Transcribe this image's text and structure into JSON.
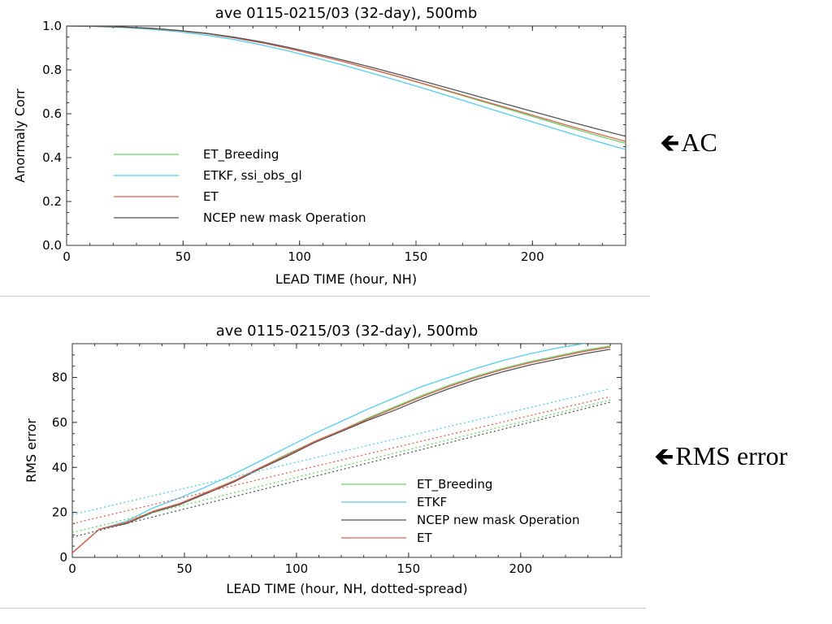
{
  "chart_data": [
    {
      "type": "line",
      "title": "ave 0115-0215/03 (32-day), 500mb",
      "xlabel": "LEAD TIME (hour, NH)",
      "ylabel": "Anormaly Corr",
      "xlim": [
        0,
        240
      ],
      "ylim": [
        0,
        1.0
      ],
      "xticks": [
        "0",
        "50",
        "100",
        "150",
        "200"
      ],
      "yticks": [
        "0.0",
        "0.2",
        "0.4",
        "0.6",
        "0.8",
        "1.0"
      ],
      "legend": "bottom-left",
      "side_label": "AC",
      "series": [
        {
          "name": "ET_Breeding",
          "color": "#66d366",
          "style": "solid",
          "x": [
            0,
            12,
            24,
            36,
            48,
            60,
            72,
            84,
            96,
            108,
            120,
            132,
            144,
            156,
            168,
            180,
            192,
            204,
            216,
            228,
            240
          ],
          "y": [
            1.0,
            0.999,
            0.995,
            0.989,
            0.979,
            0.965,
            0.946,
            0.923,
            0.896,
            0.866,
            0.834,
            0.799,
            0.764,
            0.727,
            0.689,
            0.651,
            0.613,
            0.575,
            0.537,
            0.5,
            0.465
          ]
        },
        {
          "name": "ETKF, ssi_obs_gl",
          "color": "#55ccee",
          "style": "solid",
          "x": [
            0,
            12,
            24,
            36,
            48,
            60,
            72,
            84,
            96,
            108,
            120,
            132,
            144,
            156,
            168,
            180,
            192,
            204,
            216,
            228,
            240
          ],
          "y": [
            1.0,
            0.998,
            0.993,
            0.985,
            0.974,
            0.958,
            0.938,
            0.913,
            0.884,
            0.852,
            0.818,
            0.782,
            0.745,
            0.707,
            0.668,
            0.628,
            0.589,
            0.55,
            0.511,
            0.473,
            0.437
          ]
        },
        {
          "name": "ET",
          "color": "#e06050",
          "style": "solid",
          "x": [
            0,
            12,
            24,
            36,
            48,
            60,
            72,
            84,
            96,
            108,
            120,
            132,
            144,
            156,
            168,
            180,
            192,
            204,
            216,
            228,
            240
          ],
          "y": [
            1.0,
            0.999,
            0.995,
            0.989,
            0.979,
            0.965,
            0.946,
            0.923,
            0.896,
            0.866,
            0.834,
            0.8,
            0.765,
            0.729,
            0.692,
            0.655,
            0.618,
            0.581,
            0.544,
            0.508,
            0.474
          ]
        },
        {
          "name": "NCEP new mask Operation",
          "color": "#555555",
          "style": "solid",
          "x": [
            0,
            12,
            24,
            36,
            48,
            60,
            72,
            84,
            96,
            108,
            120,
            132,
            144,
            156,
            168,
            180,
            192,
            204,
            216,
            228,
            240
          ],
          "y": [
            1.0,
            0.999,
            0.996,
            0.99,
            0.98,
            0.967,
            0.949,
            0.927,
            0.901,
            0.872,
            0.841,
            0.809,
            0.775,
            0.74,
            0.705,
            0.669,
            0.634,
            0.599,
            0.564,
            0.53,
            0.497
          ]
        }
      ]
    },
    {
      "type": "line",
      "title": "ave 0115-0215/03 (32-day), 500mb",
      "xlabel": "LEAD TIME (hour, NH, dotted-spread)",
      "ylabel": "RMS error",
      "xlim": [
        0,
        245
      ],
      "ylim": [
        0,
        95
      ],
      "xticks": [
        "0",
        "50",
        "100",
        "150",
        "200"
      ],
      "yticks": [
        "0",
        "20",
        "40",
        "60",
        "80"
      ],
      "legend": "bottom-right",
      "side_label": "RMS error",
      "series": [
        {
          "name": "ET_Breeding",
          "color": "#66d366",
          "style": "solid",
          "x": [
            0,
            12,
            24,
            36,
            48,
            60,
            72,
            84,
            96,
            108,
            120,
            132,
            144,
            156,
            168,
            180,
            192,
            204,
            216,
            228,
            240
          ],
          "y": [
            2,
            12.5,
            15,
            20.5,
            24,
            29,
            34,
            40,
            46,
            51.5,
            56.5,
            62,
            67,
            72,
            76.5,
            80.5,
            84,
            87,
            89.5,
            92,
            94
          ]
        },
        {
          "name": "ETKF",
          "color": "#55ccee",
          "style": "solid",
          "x": [
            0,
            12,
            24,
            36,
            48,
            60,
            72,
            84,
            96,
            108,
            120,
            132,
            144,
            156,
            168,
            180,
            192,
            204,
            216,
            228,
            240
          ],
          "y": [
            2,
            12.5,
            16,
            22,
            26.5,
            31.5,
            37,
            43,
            49,
            55,
            60.5,
            66,
            71,
            76,
            80,
            84,
            87.5,
            90.5,
            93,
            95,
            97
          ]
        },
        {
          "name": "NCEP new mask Operation",
          "color": "#555555",
          "style": "solid",
          "x": [
            0,
            12,
            24,
            36,
            48,
            60,
            72,
            84,
            96,
            108,
            120,
            132,
            144,
            156,
            168,
            180,
            192,
            204,
            216,
            228,
            240
          ],
          "y": [
            2,
            12.5,
            15,
            20,
            23.5,
            28.5,
            33.5,
            39.5,
            45,
            51,
            56,
            61,
            65.5,
            70.5,
            75,
            79,
            82.5,
            85.5,
            88,
            90.5,
            92.5
          ]
        },
        {
          "name": "ET",
          "color": "#e06050",
          "style": "solid",
          "x": [
            0,
            12,
            24,
            36,
            48,
            60,
            72,
            84,
            96,
            108,
            120,
            132,
            144,
            156,
            168,
            180,
            192,
            204,
            216,
            228,
            240
          ],
          "y": [
            2,
            12.5,
            15.5,
            20.5,
            24,
            29,
            34,
            40,
            45.5,
            51.5,
            56.5,
            61.5,
            66.5,
            71.5,
            76,
            80,
            83.5,
            86.5,
            89,
            91.5,
            93.5
          ]
        },
        {
          "name": "",
          "color": "#66d366",
          "style": "dotted",
          "x": [
            0,
            240
          ],
          "y": [
            11,
            70
          ]
        },
        {
          "name": "",
          "color": "#55ccee",
          "style": "dotted",
          "x": [
            0,
            240
          ],
          "y": [
            19,
            75
          ]
        },
        {
          "name": "",
          "color": "#555555",
          "style": "dotted",
          "x": [
            0,
            240
          ],
          "y": [
            9,
            69
          ]
        },
        {
          "name": "",
          "color": "#e06050",
          "style": "dotted",
          "x": [
            0,
            240
          ],
          "y": [
            15,
            71.5
          ]
        }
      ]
    }
  ]
}
